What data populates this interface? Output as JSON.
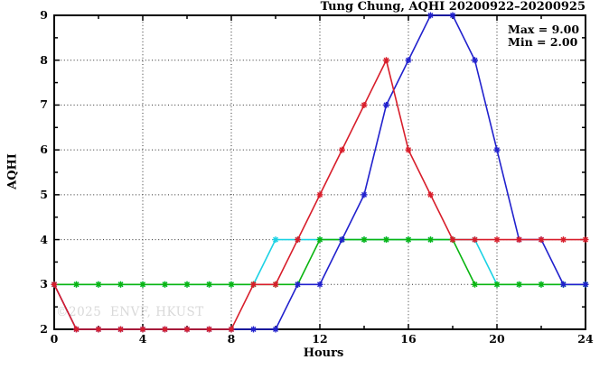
{
  "figure": {
    "watermark": "©2025  ENVF, HKUST"
  },
  "chart_data": {
    "type": "line",
    "title": "Tung Chung, AQHI 20200922–20200925",
    "xlabel": "Hours",
    "ylabel": "AQHI",
    "xlim": [
      0,
      24
    ],
    "ylim": [
      2,
      9
    ],
    "x_ticks": [
      0,
      4,
      8,
      12,
      16,
      20,
      24
    ],
    "x_minor_ticks": [
      2,
      6,
      10,
      14,
      18,
      22
    ],
    "y_ticks": [
      2,
      3,
      4,
      5,
      6,
      7,
      8,
      9
    ],
    "y_minor_ticks": [
      2.5,
      3.5,
      4.5,
      5.5,
      6.5,
      7.5,
      8.5
    ],
    "grid": true,
    "legend": "none",
    "annotations": [
      "Max = 9.00",
      "Min = 2.00"
    ],
    "hours": [
      0,
      1,
      2,
      3,
      4,
      5,
      6,
      7,
      8,
      9,
      10,
      11,
      12,
      13,
      14,
      15,
      16,
      17,
      18,
      19,
      20,
      21,
      22,
      23,
      24
    ],
    "series": [
      {
        "id": "cyan",
        "color": "#1cd2e4",
        "values": [
          3,
          3,
          3,
          3,
          3,
          3,
          3,
          3,
          3,
          3,
          4,
          4,
          4,
          4,
          4,
          4,
          4,
          4,
          4,
          4,
          3,
          3,
          3,
          3,
          3
        ]
      },
      {
        "id": "green",
        "color": "#0bb512",
        "values": [
          3,
          3,
          3,
          3,
          3,
          3,
          3,
          3,
          3,
          3,
          3,
          3,
          4,
          4,
          4,
          4,
          4,
          4,
          4,
          3,
          3,
          3,
          3,
          3,
          3
        ]
      },
      {
        "id": "blue",
        "color": "#2121cd",
        "values": [
          3,
          2,
          2,
          2,
          2,
          2,
          2,
          2,
          2,
          2,
          2,
          3,
          3,
          4,
          5,
          7,
          8,
          9,
          9,
          8,
          6,
          4,
          4,
          3,
          3
        ]
      },
      {
        "id": "red",
        "color": "#d81e2b",
        "values": [
          3,
          2,
          2,
          2,
          2,
          2,
          2,
          2,
          2,
          3,
          3,
          4,
          5,
          6,
          7,
          8,
          6,
          5,
          4,
          4,
          4,
          4,
          4,
          4,
          4
        ]
      }
    ]
  }
}
